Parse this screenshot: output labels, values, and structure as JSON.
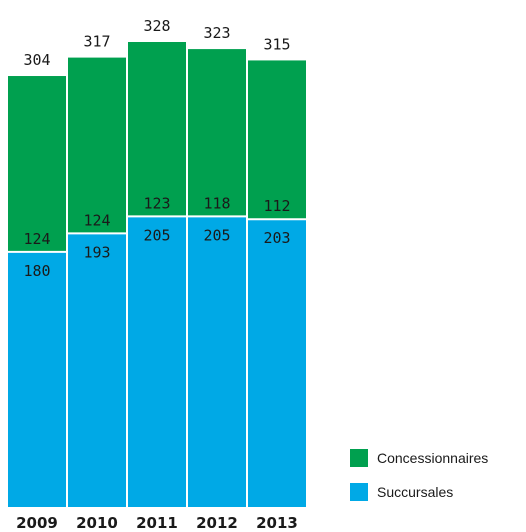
{
  "chart_data": {
    "type": "bar",
    "stacked": true,
    "categories": [
      "2009",
      "2010",
      "2011",
      "2012",
      "2013"
    ],
    "highlight_category": "2013",
    "series": [
      {
        "name": "Succursales",
        "values": [
          180,
          193,
          205,
          205,
          203
        ],
        "color": "#00a9e6"
      },
      {
        "name": "Concessionnaires",
        "values": [
          124,
          124,
          123,
          118,
          112
        ],
        "color": "#00a04f"
      }
    ],
    "totals": [
      304,
      317,
      328,
      323,
      315
    ],
    "title": "",
    "xlabel": "",
    "ylabel": "",
    "ylim": [
      0,
      328
    ],
    "grid": false,
    "legend_position": "bottom-right"
  },
  "legend": {
    "items": [
      {
        "label": "Concessionnaires",
        "color": "#00a04f"
      },
      {
        "label": "Succursales",
        "color": "#00a9e6"
      }
    ]
  }
}
